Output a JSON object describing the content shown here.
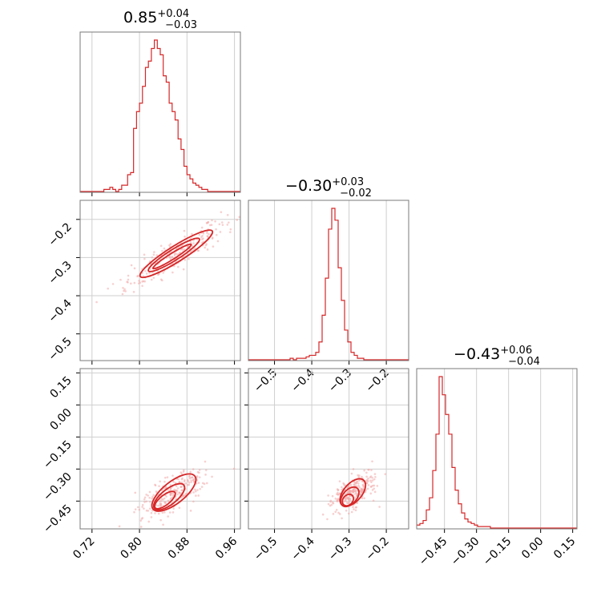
{
  "colors": {
    "line": "#d62728",
    "scatter": "#f3a7a7",
    "grid": "#cfcfcf",
    "frame": "#7a7a7a"
  },
  "chart_data": [
    {
      "type": "histogram",
      "panel": "param1-marginal",
      "title": {
        "median": "0.85",
        "plus": "+0.04",
        "minus": "−0.03"
      },
      "xlim": [
        0.7,
        0.97
      ],
      "x_ticks": [
        0.72,
        0.8,
        0.88,
        0.96
      ],
      "bin_edges_start": 0.7,
      "bin_width": 0.005,
      "counts": [
        0,
        0,
        0,
        0,
        0,
        0,
        0,
        0,
        1,
        1,
        2,
        1,
        0,
        1,
        3,
        3,
        8,
        9,
        30,
        38,
        42,
        50,
        59,
        62,
        68,
        72,
        68,
        65,
        55,
        52,
        42,
        38,
        34,
        25,
        20,
        12,
        8,
        6,
        4,
        3,
        2,
        1,
        1,
        0,
        0,
        0,
        0,
        0,
        0,
        0,
        0,
        0,
        0,
        0
      ]
    },
    {
      "type": "histogram",
      "panel": "param2-marginal",
      "title": {
        "median": "−0.30",
        "plus": "+0.03",
        "minus": "−0.02"
      },
      "xlim": [
        -0.57,
        -0.14
      ],
      "x_ticks": [
        -0.5,
        -0.4,
        -0.3,
        -0.2
      ],
      "x_tick_labels": [
        "−0.5",
        "−0.4",
        "−0.3",
        "−0.2"
      ],
      "bin_edges_start": -0.57,
      "bin_width": 0.0086,
      "counts": [
        0,
        0,
        0,
        0,
        0,
        0,
        0,
        0,
        0,
        0,
        0,
        0,
        0,
        1,
        0,
        1,
        1,
        1,
        2,
        3,
        3,
        5,
        12,
        30,
        55,
        88,
        102,
        94,
        62,
        40,
        20,
        12,
        5,
        3,
        1,
        1,
        0,
        0,
        0,
        0,
        0,
        0,
        0,
        0,
        0,
        0,
        0,
        0,
        0,
        0
      ]
    },
    {
      "type": "histogram",
      "panel": "param3-marginal",
      "title": {
        "median": "−0.43",
        "plus": "+0.06",
        "minus": "−0.04"
      },
      "xlim": [
        -0.58,
        0.17
      ],
      "x_ticks": [
        -0.45,
        -0.3,
        -0.15,
        0.0,
        0.15
      ],
      "x_tick_labels": [
        "−0.45",
        "−0.30",
        "−0.15",
        "0.00",
        "0.15"
      ],
      "bin_edges_start": -0.58,
      "bin_width": 0.015,
      "counts": [
        2,
        3,
        5,
        12,
        20,
        38,
        62,
        100,
        88,
        75,
        62,
        40,
        25,
        16,
        10,
        6,
        4,
        3,
        2,
        1,
        1,
        1,
        1,
        0,
        0,
        0,
        0,
        0,
        0,
        0,
        0,
        0,
        0,
        0,
        0,
        0,
        0,
        0,
        0,
        0,
        0,
        0,
        0,
        0,
        0,
        0,
        0,
        0,
        0,
        0
      ]
    },
    {
      "type": "scatter-contour",
      "panel": "param1-vs-param2",
      "xlim": [
        0.7,
        0.97
      ],
      "ylim": [
        -0.57,
        -0.15
      ],
      "x_ticks": [
        0.72,
        0.8,
        0.88,
        0.96
      ],
      "y_ticks": [
        -0.5,
        -0.4,
        -0.3,
        -0.2
      ],
      "y_tick_labels": [
        "−0.5",
        "−0.4",
        "−0.3",
        "−0.2"
      ],
      "linear_fit": {
        "slope": 0.98,
        "intercept": -1.135
      },
      "contour_ellipses": [
        {
          "cx": 0.855,
          "cy": -0.297,
          "a": 0.045,
          "b": 0.006
        },
        {
          "cx": 0.858,
          "cy": -0.293,
          "a": 0.06,
          "b": 0.011
        },
        {
          "cx": 0.862,
          "cy": -0.29,
          "a": 0.085,
          "b": 0.016
        }
      ]
    },
    {
      "type": "scatter-contour",
      "panel": "param1-vs-param3",
      "xlim": [
        0.7,
        0.97
      ],
      "ylim": [
        -0.58,
        0.17
      ],
      "x_ticks": [
        0.72,
        0.8,
        0.88,
        0.96
      ],
      "x_tick_labels": [
        "0.72",
        "0.80",
        "0.88",
        "0.96"
      ],
      "y_ticks": [
        -0.45,
        -0.3,
        -0.15,
        0.0,
        0.15
      ],
      "y_tick_labels": [
        "−0.45",
        "−0.30",
        "−0.15",
        "0.00",
        "0.15"
      ],
      "linear_fit": {
        "slope": 2.2,
        "intercept": -2.3
      },
      "contour_ellipses": [
        {
          "cx": 0.843,
          "cy": -0.445,
          "a": 0.04,
          "b": 0.009
        },
        {
          "cx": 0.85,
          "cy": -0.43,
          "a": 0.06,
          "b": 0.014
        },
        {
          "cx": 0.858,
          "cy": -0.41,
          "a": 0.085,
          "b": 0.02
        }
      ]
    },
    {
      "type": "scatter-contour",
      "panel": "param2-vs-param3",
      "xlim": [
        -0.57,
        -0.14
      ],
      "ylim": [
        -0.58,
        0.17
      ],
      "x_ticks": [
        -0.5,
        -0.4,
        -0.3,
        -0.2
      ],
      "x_tick_labels": [
        "−0.5",
        "−0.4",
        "−0.3",
        "−0.2"
      ],
      "y_ticks": [
        -0.45,
        -0.3,
        -0.15,
        0.0,
        0.15
      ],
      "linear_fit": {
        "slope": 2.0,
        "intercept": 0.165
      },
      "contour_ellipses": [
        {
          "cx": -0.303,
          "cy": -0.445,
          "a": 0.025,
          "b": 0.014
        },
        {
          "cx": -0.298,
          "cy": -0.43,
          "a": 0.045,
          "b": 0.02
        },
        {
          "cx": -0.29,
          "cy": -0.41,
          "a": 0.065,
          "b": 0.026
        }
      ]
    }
  ]
}
